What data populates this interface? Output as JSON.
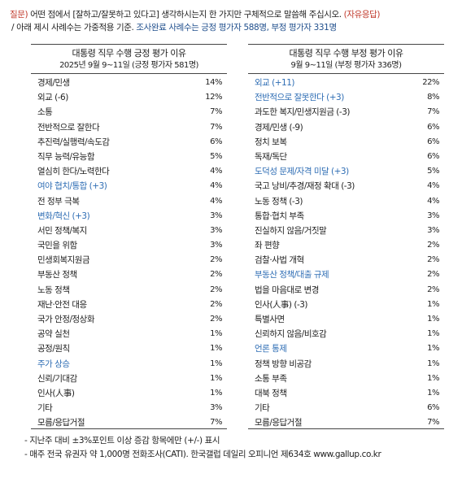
{
  "header": {
    "q_label": "질문)",
    "q_text": " 어떤 점에서 [잘하고/잘못하고 있다고] 생각하시는지 한 가지만 구체적으로 말씀해 주십시오.",
    "q_tag": "(자유응답)",
    "line2_prefix": "/ 아래 제시 사례수는 가중적용 기준. ",
    "line2_highlight": "조사완료 사례수는 긍정 평가자 588명, 부정 평가자 331명"
  },
  "left_table": {
    "title": "대통령 직무 수행 긍정 평가 이유",
    "subtitle": "2025년 9월 9~11일 (긍정 평가자 581명)",
    "rows": [
      {
        "label": "경제/민생",
        "value": "14%",
        "highlight": false
      },
      {
        "label": "외교 (-6)",
        "value": "12%",
        "highlight": false
      },
      {
        "label": "소통",
        "value": "7%",
        "highlight": false
      },
      {
        "label": "전반적으로 잘한다",
        "value": "7%",
        "highlight": false
      },
      {
        "label": "추진력/실행력/속도감",
        "value": "6%",
        "highlight": false
      },
      {
        "label": "직무 능력/유능함",
        "value": "5%",
        "highlight": false
      },
      {
        "label": "열심히 한다/노력한다",
        "value": "4%",
        "highlight": false
      },
      {
        "label": "여야 협치/통합 (+3)",
        "value": "4%",
        "highlight": true
      },
      {
        "label": "전 정부 극복",
        "value": "4%",
        "highlight": false
      },
      {
        "label": "변화/혁신 (+3)",
        "value": "3%",
        "highlight": true
      },
      {
        "label": "서민 정책/복지",
        "value": "3%",
        "highlight": false
      },
      {
        "label": "국민을 위함",
        "value": "3%",
        "highlight": false
      },
      {
        "label": "민생회복지원금",
        "value": "2%",
        "highlight": false
      },
      {
        "label": "부동산 정책",
        "value": "2%",
        "highlight": false
      },
      {
        "label": "노동 정책",
        "value": "2%",
        "highlight": false
      },
      {
        "label": "재난·안전 대응",
        "value": "2%",
        "highlight": false
      },
      {
        "label": "국가 안정/정상화",
        "value": "2%",
        "highlight": false
      },
      {
        "label": "공약 실천",
        "value": "1%",
        "highlight": false
      },
      {
        "label": "공정/원칙",
        "value": "1%",
        "highlight": false
      },
      {
        "label": "주가 상승",
        "value": "1%",
        "highlight": true
      },
      {
        "label": "신뢰/기대감",
        "value": "1%",
        "highlight": false
      },
      {
        "label": "인사(人事)",
        "value": "1%",
        "highlight": false
      },
      {
        "label": "기타",
        "value": "3%",
        "highlight": false
      },
      {
        "label": "모름/응답거절",
        "value": "7%",
        "highlight": false
      }
    ]
  },
  "right_table": {
    "title": "대통령 직무 수행 부정 평가 이유",
    "subtitle": "9월 9~11일 (부정 평가자 336명)",
    "rows": [
      {
        "label": "외교 (+11)",
        "value": "22%",
        "highlight": true
      },
      {
        "label": "전반적으로 잘못한다 (+3)",
        "value": "8%",
        "highlight": true
      },
      {
        "label": "과도한 복지/민생지원금 (-3)",
        "value": "7%",
        "highlight": false
      },
      {
        "label": "경제/민생 (-9)",
        "value": "6%",
        "highlight": false
      },
      {
        "label": "정치 보복",
        "value": "6%",
        "highlight": false
      },
      {
        "label": "독재/독단",
        "value": "6%",
        "highlight": false
      },
      {
        "label": "도덕성 문제/자격 미달 (+3)",
        "value": "5%",
        "highlight": true
      },
      {
        "label": "국고 낭비/추경/재정 확대 (-3)",
        "value": "4%",
        "highlight": false
      },
      {
        "label": "노동 정책 (-3)",
        "value": "4%",
        "highlight": false
      },
      {
        "label": "통합·협치 부족",
        "value": "3%",
        "highlight": false
      },
      {
        "label": "진실하지 않음/거짓말",
        "value": "3%",
        "highlight": false
      },
      {
        "label": "좌 편향",
        "value": "2%",
        "highlight": false
      },
      {
        "label": "검찰·사법 개혁",
        "value": "2%",
        "highlight": false
      },
      {
        "label": "부동산 정책/대출 규제",
        "value": "2%",
        "highlight": true
      },
      {
        "label": "법을 마음대로 변경",
        "value": "2%",
        "highlight": false
      },
      {
        "label": "인사(人事) (-3)",
        "value": "1%",
        "highlight": false
      },
      {
        "label": "특별사면",
        "value": "1%",
        "highlight": false
      },
      {
        "label": "신뢰하지 않음/비호감",
        "value": "1%",
        "highlight": false
      },
      {
        "label": "언론 통제",
        "value": "1%",
        "highlight": true
      },
      {
        "label": "정책 방향 비공감",
        "value": "1%",
        "highlight": false
      },
      {
        "label": "소통 부족",
        "value": "1%",
        "highlight": false
      },
      {
        "label": "대북 정책",
        "value": "1%",
        "highlight": false
      },
      {
        "label": "기타",
        "value": "6%",
        "highlight": false
      },
      {
        "label": "모름/응답거절",
        "value": "7%",
        "highlight": false
      }
    ]
  },
  "footer": {
    "note1": "- 지난주 대비 ±3%포인트 이상 증감 항목에만 (+/-) 표시",
    "note2": "- 매주 전국 유권자 약 1,000명 전화조사(CATI). 한국갤럽 데일리 오피니언 제634호 www.gallup.co.kr"
  },
  "colors": {
    "question": "#c0392b",
    "highlight": "#2e6db4",
    "rule": "#444444"
  }
}
